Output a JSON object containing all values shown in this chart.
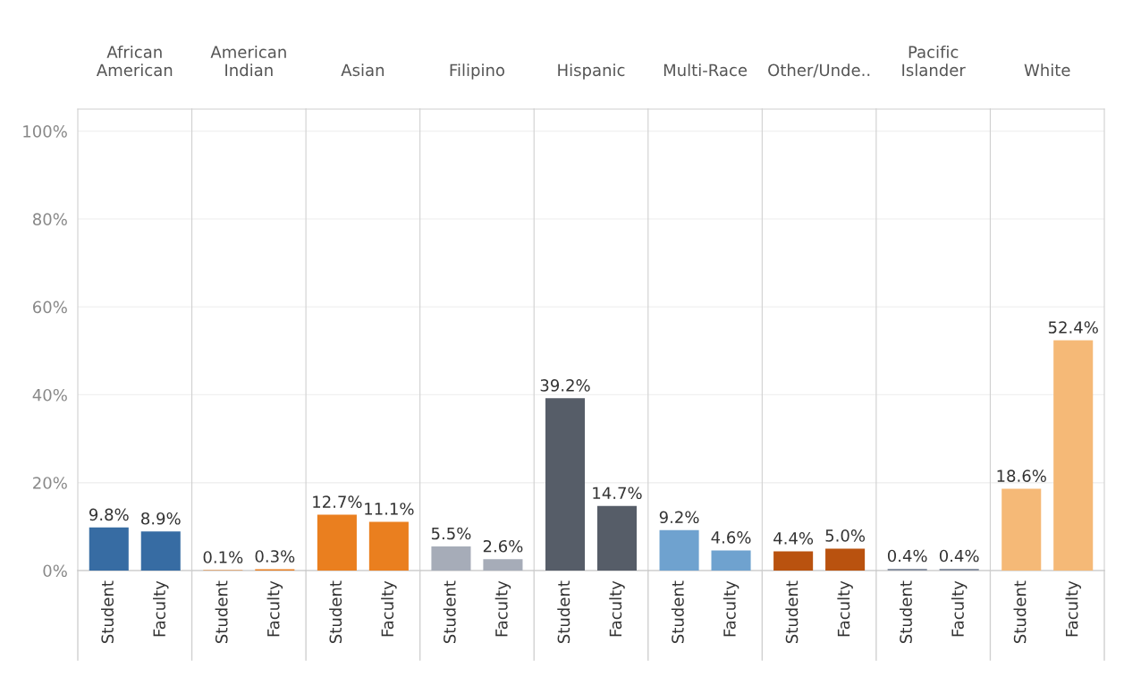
{
  "chart_data": [
    {
      "type": "bar",
      "title": "African\nAmerican",
      "categories": [
        "Student",
        "Faculty"
      ],
      "values": [
        9.8,
        8.9
      ],
      "colors": [
        "#376ca3",
        "#376ca3"
      ],
      "value_labels": [
        "9.8%",
        "8.9%"
      ],
      "ylim": [
        0,
        105
      ],
      "yticks": [
        {
          "value": 0,
          "label": "0%"
        },
        {
          "value": 20,
          "label": "20%"
        },
        {
          "value": 40,
          "label": "40%"
        },
        {
          "value": 60,
          "label": "60%"
        },
        {
          "value": 80,
          "label": "80%"
        },
        {
          "value": 100,
          "label": "100%"
        }
      ],
      "grid": "y"
    },
    {
      "type": "bar",
      "title": "American\nIndian",
      "categories": [
        "Student",
        "Faculty"
      ],
      "values": [
        0.1,
        0.3
      ],
      "colors": [
        "#e97f21",
        "#e97f21"
      ],
      "value_labels": [
        "0.1%",
        "0.3%"
      ],
      "ylim": [
        0,
        105
      ],
      "yticks": [
        0,
        20,
        40,
        60,
        80,
        100
      ],
      "grid": "y",
      "tick_labels": "x"
    },
    {
      "type": "bar",
      "title": "Asian",
      "categories": [
        "Student",
        "Faculty"
      ],
      "values": [
        12.7,
        11.1
      ],
      "colors": [
        "#ea7f1f",
        "#ea7f1f"
      ],
      "value_labels": [
        "12.7%",
        "11.1%"
      ],
      "ylim": [
        0,
        105
      ],
      "yticks": [
        0,
        20,
        40,
        60,
        80,
        100
      ],
      "grid": "y",
      "tick_labels": "x"
    },
    {
      "type": "bar",
      "title": "Filipino",
      "categories": [
        "Student",
        "Faculty"
      ],
      "values": [
        5.5,
        2.6
      ],
      "colors": [
        "#a6acb8",
        "#a6acb8"
      ],
      "value_labels": [
        "5.5%",
        "2.6%"
      ],
      "ylim": [
        0,
        105
      ],
      "yticks": [
        0,
        20,
        40,
        60,
        80,
        100
      ],
      "grid": "y",
      "tick_labels": "x"
    },
    {
      "type": "bar",
      "title": "Hispanic",
      "categories": [
        "Student",
        "Faculty"
      ],
      "values": [
        39.2,
        14.7
      ],
      "colors": [
        "#565d68",
        "#565d68"
      ],
      "value_labels": [
        "39.2%",
        "14.7%"
      ],
      "ylim": [
        0,
        105
      ],
      "yticks": [
        0,
        20,
        40,
        60,
        80,
        100
      ],
      "grid": "y",
      "tick_labels": "x"
    },
    {
      "type": "bar",
      "title": "Multi-Race",
      "categories": [
        "Student",
        "Faculty"
      ],
      "values": [
        9.2,
        4.6
      ],
      "colors": [
        "#6fa2cf",
        "#6fa2cf"
      ],
      "value_labels": [
        "9.2%",
        "4.6%"
      ],
      "ylim": [
        0,
        105
      ],
      "yticks": [
        0,
        20,
        40,
        60,
        80,
        100
      ],
      "grid": "y",
      "tick_labels": "x"
    },
    {
      "type": "bar",
      "title": "Other/Unde..",
      "categories": [
        "Student",
        "Faculty"
      ],
      "values": [
        4.4,
        5.0
      ],
      "colors": [
        "#b9520f",
        "#b9520f"
      ],
      "value_labels": [
        "4.4%",
        "5.0%"
      ],
      "ylim": [
        0,
        105
      ],
      "yticks": [
        0,
        20,
        40,
        60,
        80,
        100
      ],
      "grid": "y",
      "tick_labels": "x"
    },
    {
      "type": "bar",
      "title": "Pacific\nIslander",
      "categories": [
        "Student",
        "Faculty"
      ],
      "values": [
        0.4,
        0.4
      ],
      "colors": [
        "#8a93a3",
        "#8a93a3"
      ],
      "value_labels": [
        "0.4%",
        "0.4%"
      ],
      "ylim": [
        0,
        105
      ],
      "yticks": [
        0,
        20,
        40,
        60,
        80,
        100
      ],
      "grid": "y",
      "tick_labels": "x"
    },
    {
      "type": "bar",
      "title": "White",
      "categories": [
        "Student",
        "Faculty"
      ],
      "values": [
        18.6,
        52.4
      ],
      "colors": [
        "#f5b977",
        "#f5b977"
      ],
      "value_labels": [
        "18.6%",
        "52.4%"
      ],
      "ylim": [
        0,
        105
      ],
      "yticks": [
        0,
        20,
        40,
        60,
        80,
        100
      ],
      "grid": "y",
      "tick_labels": "x"
    }
  ]
}
